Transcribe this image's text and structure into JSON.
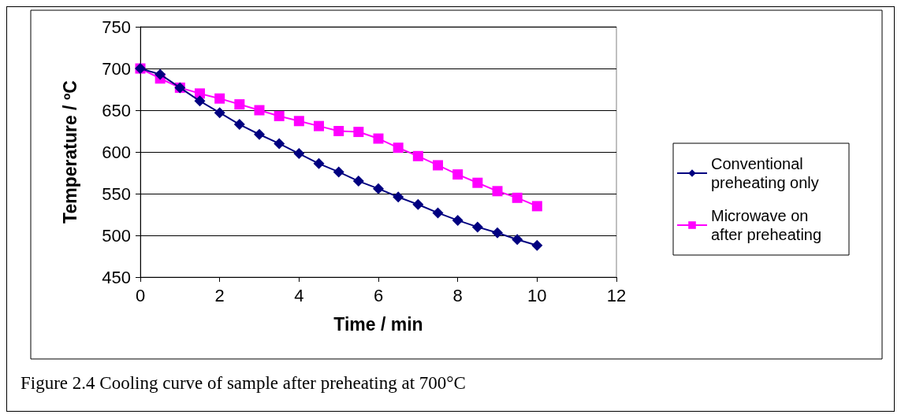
{
  "chart_data": {
    "type": "line",
    "xlabel": "Time / min",
    "ylabel": "Temperature / ºC",
    "annotations": [
      "Figure 2.4 Cooling curve of sample after preheating at 700°C"
    ],
    "x": [
      0,
      0.5,
      1,
      1.5,
      2,
      2.5,
      3,
      3.5,
      4,
      4.5,
      5,
      5.5,
      6,
      6.5,
      7,
      7.5,
      8,
      8.5,
      9,
      9.5,
      10
    ],
    "series": [
      {
        "name": "Conventional preheating only",
        "color": "#000080",
        "marker": "diamond",
        "values": [
          700,
          693,
          677,
          661,
          647,
          633,
          621,
          610,
          598,
          586,
          576,
          565,
          556,
          546,
          537,
          527,
          518,
          510,
          503,
          495,
          488
        ]
      },
      {
        "name": "Microwave on after preheating",
        "color": "#ff00ff",
        "marker": "square",
        "values": [
          700,
          688,
          677,
          670,
          664,
          657,
          650,
          643,
          637,
          631,
          625,
          624,
          616,
          605,
          595,
          584,
          573,
          563,
          553,
          545,
          535
        ]
      }
    ],
    "xlim": [
      0,
      12
    ],
    "xticks": [
      0,
      2,
      4,
      6,
      8,
      10,
      12
    ],
    "ylim": [
      450,
      750
    ],
    "yticks": [
      450,
      500,
      550,
      600,
      650,
      700,
      750
    ],
    "grid": "y",
    "legend": "right"
  }
}
